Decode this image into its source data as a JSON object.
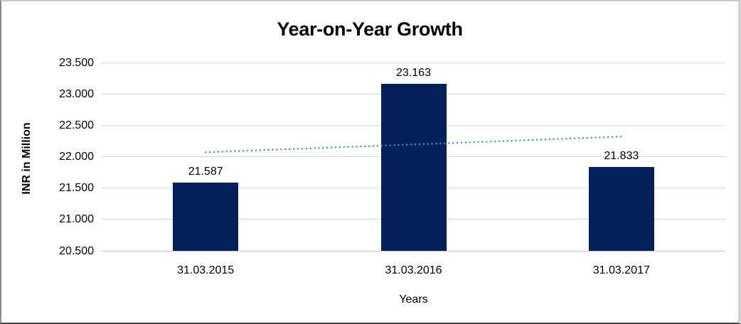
{
  "chart_data": {
    "type": "bar",
    "title": "Year-on-Year Growth",
    "xlabel": "Years",
    "ylabel": "INR in Million",
    "categories": [
      "31.03.2015",
      "31.03.2016",
      "31.03.2017"
    ],
    "values": [
      21.587,
      23.163,
      21.833
    ],
    "data_labels": [
      "21.587",
      "23.163",
      "21.833"
    ],
    "y_ticks": [
      "20.500",
      "21.000",
      "21.500",
      "22.000",
      "22.500",
      "23.000",
      "23.500"
    ],
    "ylim": [
      20.5,
      23.5
    ],
    "grid": "horizontal",
    "legend": "none",
    "trendline": {
      "style": "dotted",
      "value_start": 22.07,
      "value_end": 22.32
    },
    "colors": {
      "bar": "#04215e",
      "trendline": "#4a86c8",
      "gridline": "#d9d9d9",
      "axis_line": "#c6c6c6",
      "text": "#000000"
    }
  }
}
